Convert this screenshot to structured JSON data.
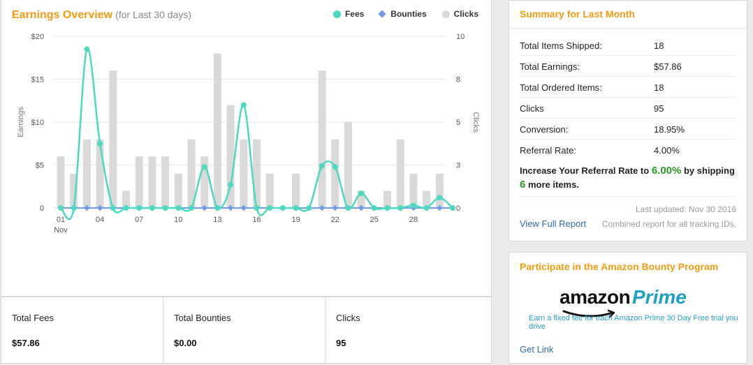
{
  "earnings": {
    "title": "Earnings Overview",
    "subtitle": "(for Last 30 days)",
    "legend": [
      {
        "label": "Fees",
        "color": "#4dd9c0",
        "shape": "circle"
      },
      {
        "label": "Bounties",
        "color": "#6f9be8",
        "shape": "diamond"
      },
      {
        "label": "Clicks",
        "color": "#d9d9d9",
        "shape": "circle"
      }
    ]
  },
  "chart_data": {
    "type": "bar",
    "left_axis_label": "Earnings",
    "right_axis_label": "Clicks",
    "left_ticks": [
      "$20",
      "$15",
      "$10",
      "$5",
      "0"
    ],
    "right_ticks": [
      "10",
      "8",
      "5",
      "3",
      "0"
    ],
    "x_tick_labels": [
      "01",
      "04",
      "07",
      "10",
      "13",
      "16",
      "19",
      "22",
      "25",
      "28"
    ],
    "x_month_label": "Nov",
    "days": [
      1,
      2,
      3,
      4,
      5,
      6,
      7,
      8,
      9,
      10,
      11,
      12,
      13,
      14,
      15,
      16,
      17,
      18,
      19,
      20,
      21,
      22,
      23,
      24,
      25,
      26,
      27,
      28,
      29,
      30,
      31
    ],
    "left_ylim": [
      0,
      20
    ],
    "right_ylim": [
      0,
      10
    ],
    "series": [
      {
        "name": "Clicks",
        "type": "bar",
        "axis": "right",
        "color": "#d9d9d9",
        "values": [
          3,
          2,
          4,
          4,
          8,
          1,
          3,
          3,
          3,
          2,
          4,
          3,
          9,
          6,
          4,
          4,
          2,
          0,
          2,
          0,
          8,
          4,
          5,
          1,
          0,
          1,
          4,
          2,
          1,
          2,
          0
        ]
      },
      {
        "name": "Fees",
        "type": "line",
        "axis": "left",
        "color": "#4dd9c0",
        "values": [
          0,
          0,
          18.5,
          7.5,
          0,
          0,
          0,
          0,
          0,
          0,
          0,
          4.8,
          0,
          2.7,
          12,
          0,
          0,
          0,
          0,
          0,
          4.9,
          4.8,
          0,
          1.7,
          0,
          0,
          0,
          0.3,
          0,
          1.2,
          0
        ]
      },
      {
        "name": "Bounties",
        "type": "line",
        "axis": "left",
        "color": "#6f9be8",
        "values": [
          0,
          0,
          0,
          0,
          0,
          0,
          0,
          0,
          0,
          0,
          0,
          0,
          0,
          0,
          0,
          0,
          0,
          0,
          0,
          0,
          0,
          0,
          0,
          0,
          0,
          0,
          0,
          0,
          0,
          0,
          0
        ]
      }
    ]
  },
  "totals": [
    {
      "label": "Total Fees",
      "value": "$57.86"
    },
    {
      "label": "Total Bounties",
      "value": "$0.00"
    },
    {
      "label": "Clicks",
      "value": "95"
    }
  ],
  "summary": {
    "title": "Summary for Last Month",
    "rows": [
      {
        "key": "Total Items Shipped:",
        "value": "18"
      },
      {
        "key": "Total Earnings:",
        "value": "$57.86"
      },
      {
        "key": "Total Ordered Items:",
        "value": "18"
      },
      {
        "key": "Clicks",
        "value": "95"
      },
      {
        "key": "Conversion:",
        "value": "18.95%"
      },
      {
        "key": "Referral Rate:",
        "value": "4.00%"
      }
    ],
    "promo": {
      "part1": "Increase Your Referral Rate to ",
      "rate": "6.00%",
      "part2": " by shipping ",
      "count": "6",
      "part3": " more items."
    },
    "last_updated": "Last updated: Nov 30 2016",
    "view_report": "View Full Report",
    "combined_note": "Combined report for all tracking IDs."
  },
  "bounty": {
    "title": "Participate in the Amazon Bounty Program",
    "logo_word1": "amazon",
    "logo_word2": "Prime",
    "description": "Earn a fixed fee for each Amazon Prime 30 Day Free trial you drive",
    "get_link": "Get Link"
  }
}
